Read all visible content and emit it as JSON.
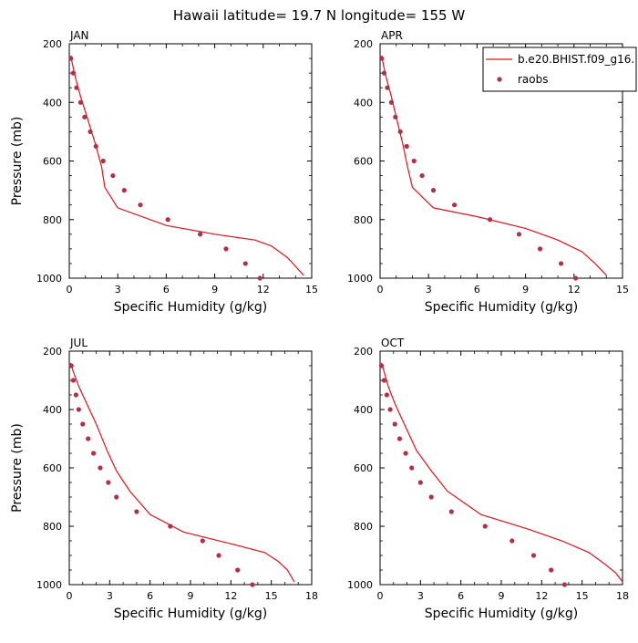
{
  "figure": {
    "title": "Hawaii  latitude= 19.7 N longitude= 155 W",
    "legend": {
      "entries": [
        "b.e20.BHIST.f09_g16.",
        "raobs"
      ],
      "placement": "top-right of APR panel"
    }
  },
  "colors": {
    "model_line": "#e0141e",
    "raobs_marker": "#b0304a",
    "axes": "#000000"
  },
  "chart_data": [
    {
      "type": "line",
      "panel_title": "JAN",
      "xlabel": "Specific Humidity (g/kg)",
      "ylabel": "Pressure (mb)",
      "xlim": [
        0,
        15
      ],
      "ylim": [
        200,
        1000
      ],
      "y_inverted": true,
      "xticks": [
        0,
        3,
        6,
        9,
        12,
        15
      ],
      "yticks": [
        200,
        400,
        600,
        800,
        1000
      ],
      "series": [
        {
          "name": "b.e20.BHIST.f09_g16.",
          "style": "line",
          "points": [
            [
              0.1,
              240
            ],
            [
              0.2,
              270
            ],
            [
              0.4,
              320
            ],
            [
              0.7,
              380
            ],
            [
              1.1,
              450
            ],
            [
              1.6,
              540
            ],
            [
              2.0,
              620
            ],
            [
              2.2,
              690
            ],
            [
              3.0,
              760
            ],
            [
              6.0,
              820
            ],
            [
              9.0,
              850
            ],
            [
              11.5,
              870
            ],
            [
              12.5,
              890
            ],
            [
              13.5,
              930
            ],
            [
              14.0,
              960
            ],
            [
              14.5,
              990
            ]
          ]
        },
        {
          "name": "raobs",
          "style": "markers",
          "points": [
            [
              0.1,
              250
            ],
            [
              0.25,
              300
            ],
            [
              0.45,
              350
            ],
            [
              0.7,
              400
            ],
            [
              0.95,
              450
            ],
            [
              1.3,
              500
            ],
            [
              1.65,
              550
            ],
            [
              2.1,
              600
            ],
            [
              2.7,
              650
            ],
            [
              3.4,
              700
            ],
            [
              4.4,
              750
            ],
            [
              6.1,
              800
            ],
            [
              8.1,
              850
            ],
            [
              9.7,
              900
            ],
            [
              10.9,
              950
            ],
            [
              11.8,
              1000
            ]
          ]
        }
      ]
    },
    {
      "type": "line",
      "panel_title": "APR",
      "xlabel": "Specific Humidity (g/kg)",
      "ylabel": "",
      "xlim": [
        0,
        15
      ],
      "ylim": [
        200,
        1000
      ],
      "y_inverted": true,
      "xticks": [
        0,
        3,
        6,
        9,
        12,
        15
      ],
      "yticks": [
        200,
        400,
        600,
        800,
        1000
      ],
      "series": [
        {
          "name": "b.e20.BHIST.f09_g16.",
          "style": "line",
          "points": [
            [
              0.1,
              240
            ],
            [
              0.2,
              270
            ],
            [
              0.4,
              320
            ],
            [
              0.7,
              380
            ],
            [
              1.0,
              450
            ],
            [
              1.4,
              540
            ],
            [
              1.7,
              620
            ],
            [
              2.0,
              690
            ],
            [
              3.3,
              760
            ],
            [
              6.0,
              790
            ],
            [
              9.0,
              830
            ],
            [
              11.0,
              870
            ],
            [
              12.5,
              910
            ],
            [
              13.3,
              950
            ],
            [
              14.0,
              990
            ]
          ]
        },
        {
          "name": "raobs",
          "style": "markers",
          "points": [
            [
              0.1,
              250
            ],
            [
              0.25,
              300
            ],
            [
              0.45,
              350
            ],
            [
              0.7,
              400
            ],
            [
              0.95,
              450
            ],
            [
              1.25,
              500
            ],
            [
              1.65,
              550
            ],
            [
              2.1,
              600
            ],
            [
              2.6,
              650
            ],
            [
              3.3,
              700
            ],
            [
              4.6,
              750
            ],
            [
              6.8,
              800
            ],
            [
              8.6,
              850
            ],
            [
              9.9,
              900
            ],
            [
              11.2,
              950
            ],
            [
              12.1,
              1000
            ]
          ]
        }
      ]
    },
    {
      "type": "line",
      "panel_title": "JUL",
      "xlabel": "Specific Humidity (g/kg)",
      "ylabel": "Pressure (mb)",
      "xlim": [
        0,
        18
      ],
      "ylim": [
        200,
        1000
      ],
      "y_inverted": true,
      "xticks": [
        0,
        3,
        6,
        9,
        12,
        15,
        18
      ],
      "yticks": [
        200,
        400,
        600,
        800,
        1000
      ],
      "series": [
        {
          "name": "b.e20.BHIST.f09_g16.",
          "style": "line",
          "points": [
            [
              0.1,
              240
            ],
            [
              0.3,
              270
            ],
            [
              0.7,
              320
            ],
            [
              1.3,
              380
            ],
            [
              2.0,
              450
            ],
            [
              2.8,
              540
            ],
            [
              3.5,
              610
            ],
            [
              4.5,
              680
            ],
            [
              6.0,
              760
            ],
            [
              8.5,
              820
            ],
            [
              12.0,
              860
            ],
            [
              14.5,
              890
            ],
            [
              15.5,
              920
            ],
            [
              16.2,
              950
            ],
            [
              16.7,
              990
            ]
          ]
        },
        {
          "name": "raobs",
          "style": "markers",
          "points": [
            [
              0.15,
              250
            ],
            [
              0.3,
              300
            ],
            [
              0.5,
              350
            ],
            [
              0.7,
              400
            ],
            [
              1.0,
              450
            ],
            [
              1.4,
              500
            ],
            [
              1.8,
              550
            ],
            [
              2.3,
              600
            ],
            [
              2.9,
              650
            ],
            [
              3.5,
              700
            ],
            [
              5.0,
              750
            ],
            [
              7.5,
              800
            ],
            [
              9.9,
              850
            ],
            [
              11.1,
              900
            ],
            [
              12.5,
              950
            ],
            [
              13.6,
              1000
            ]
          ]
        }
      ]
    },
    {
      "type": "line",
      "panel_title": "OCT",
      "xlabel": "Specific Humidity (g/kg)",
      "ylabel": "",
      "xlim": [
        0,
        18
      ],
      "ylim": [
        200,
        1000
      ],
      "y_inverted": true,
      "xticks": [
        0,
        3,
        6,
        9,
        12,
        15,
        18
      ],
      "yticks": [
        200,
        400,
        600,
        800,
        1000
      ],
      "series": [
        {
          "name": "b.e20.BHIST.f09_g16.",
          "style": "line",
          "points": [
            [
              0.1,
              240
            ],
            [
              0.3,
              270
            ],
            [
              0.6,
              320
            ],
            [
              1.1,
              380
            ],
            [
              1.8,
              450
            ],
            [
              2.7,
              540
            ],
            [
              3.8,
              610
            ],
            [
              5.0,
              680
            ],
            [
              7.5,
              760
            ],
            [
              11.0,
              810
            ],
            [
              13.5,
              850
            ],
            [
              15.5,
              890
            ],
            [
              16.7,
              930
            ],
            [
              17.5,
              960
            ],
            [
              18.0,
              990
            ]
          ]
        },
        {
          "name": "raobs",
          "style": "markers",
          "points": [
            [
              0.1,
              250
            ],
            [
              0.3,
              300
            ],
            [
              0.5,
              350
            ],
            [
              0.75,
              400
            ],
            [
              1.1,
              450
            ],
            [
              1.45,
              500
            ],
            [
              1.9,
              550
            ],
            [
              2.35,
              600
            ],
            [
              3.0,
              650
            ],
            [
              3.8,
              700
            ],
            [
              5.3,
              750
            ],
            [
              7.8,
              800
            ],
            [
              9.8,
              850
            ],
            [
              11.4,
              900
            ],
            [
              12.7,
              950
            ],
            [
              13.7,
              1000
            ]
          ]
        }
      ]
    }
  ]
}
